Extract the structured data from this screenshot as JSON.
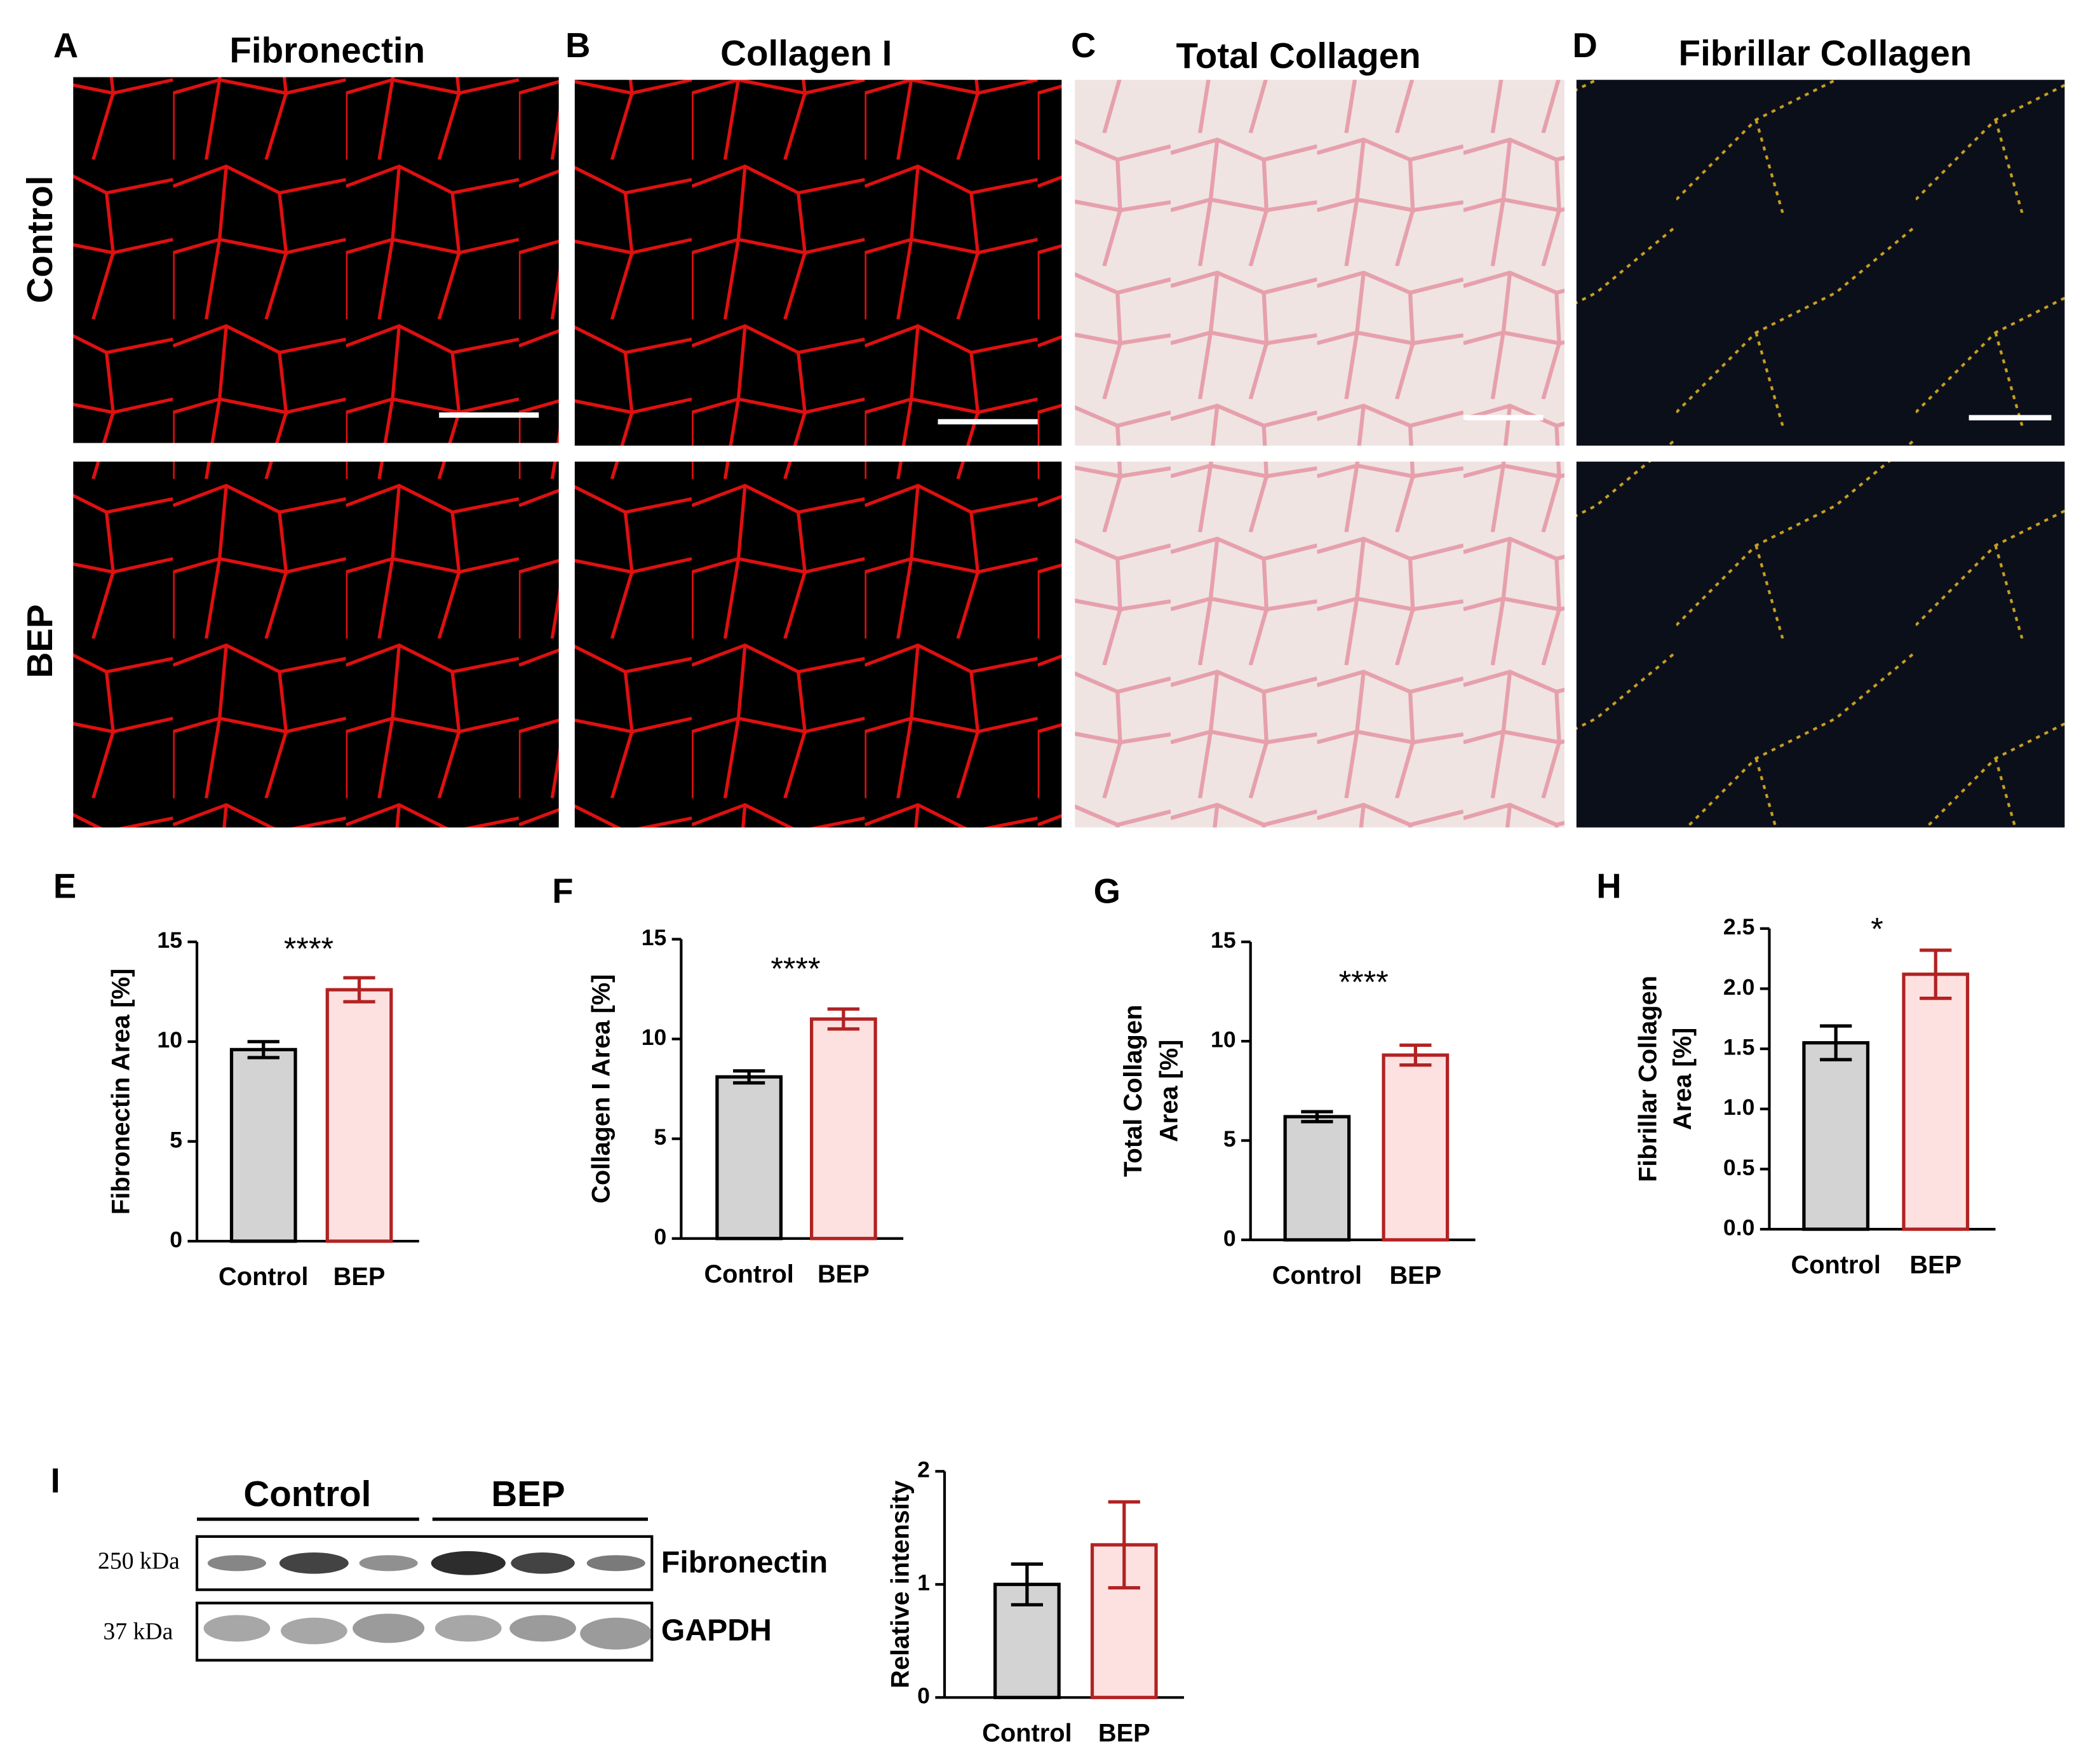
{
  "figure": {
    "panel_letters": [
      "A",
      "B",
      "C",
      "D",
      "E",
      "F",
      "G",
      "H",
      "I"
    ],
    "column_titles": [
      "Fibronectin",
      "Collagen I",
      "Total Collagen",
      "Fibrillar Collagen"
    ],
    "row_labels": [
      "Control",
      "BEP"
    ],
    "blot": {
      "groups": [
        "Control",
        "BEP"
      ],
      "markers": [
        "250 kDa",
        "37 kDa"
      ],
      "proteins": [
        "Fibronectin",
        "GAPDH"
      ]
    }
  },
  "chart_data": [
    {
      "type": "bar",
      "y_label": [
        "Fibronectin Area [%]"
      ],
      "annotation": "****",
      "categories": [
        "Control",
        "BEP"
      ],
      "values": [
        9.6,
        12.6
      ],
      "errors": [
        0.4,
        0.6
      ],
      "colors": [
        "#d3d3d3",
        "#fde0e0"
      ],
      "edge_colors": [
        "#000000",
        "#b22222"
      ],
      "ylim": [
        0,
        15
      ],
      "yticks": [
        0,
        5,
        10,
        15
      ]
    },
    {
      "type": "bar",
      "y_label": [
        "Collagen I Area [%]"
      ],
      "annotation": "****",
      "categories": [
        "Control",
        "BEP"
      ],
      "values": [
        8.1,
        11.0
      ],
      "errors": [
        0.3,
        0.5
      ],
      "colors": [
        "#d3d3d3",
        "#fde0e0"
      ],
      "edge_colors": [
        "#000000",
        "#b22222"
      ],
      "ylim": [
        0,
        15
      ],
      "yticks": [
        0,
        5,
        10,
        15
      ]
    },
    {
      "type": "bar",
      "y_label": [
        "Total Collagen",
        "Area [%]"
      ],
      "annotation": "****",
      "categories": [
        "Control",
        "BEP"
      ],
      "values": [
        6.2,
        9.3
      ],
      "errors": [
        0.25,
        0.5
      ],
      "colors": [
        "#d3d3d3",
        "#fde0e0"
      ],
      "edge_colors": [
        "#000000",
        "#b22222"
      ],
      "ylim": [
        0,
        15
      ],
      "yticks": [
        0,
        5,
        10,
        15
      ]
    },
    {
      "type": "bar",
      "y_label": [
        "Fibrillar Collagen",
        "Area [%]"
      ],
      "annotation": "*",
      "categories": [
        "Control",
        "BEP"
      ],
      "values": [
        1.55,
        2.12
      ],
      "errors": [
        0.14,
        0.2
      ],
      "colors": [
        "#d3d3d3",
        "#fde0e0"
      ],
      "edge_colors": [
        "#000000",
        "#b22222"
      ],
      "ylim": [
        0,
        2.5
      ],
      "yticks": [
        {
          "value": 0,
          "label": "0.0"
        },
        0.5,
        {
          "value": 1,
          "label": "1.0"
        },
        1.5,
        {
          "value": 2,
          "label": "2.0"
        },
        2.5
      ]
    },
    {
      "type": "bar",
      "y_label": [
        "Relative intensity"
      ],
      "categories": [
        "Control",
        "BEP"
      ],
      "values": [
        1.0,
        1.35
      ],
      "errors": [
        0.18,
        0.38
      ],
      "colors": [
        "#d3d3d3",
        "#fde0e0"
      ],
      "edge_colors": [
        "#000000",
        "#b22222"
      ],
      "ylim": [
        0,
        2
      ],
      "yticks": [
        0,
        1,
        2
      ]
    }
  ]
}
